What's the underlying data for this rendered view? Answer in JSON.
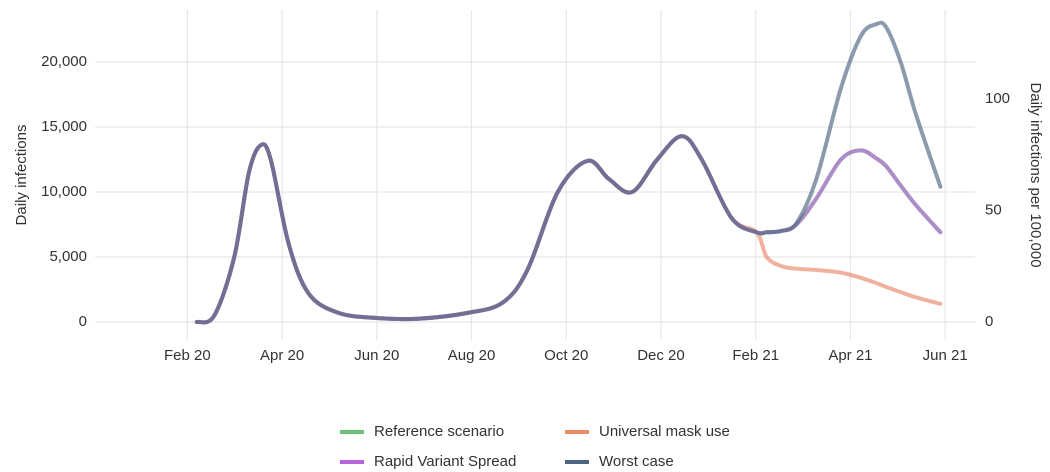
{
  "chart_data": {
    "type": "line",
    "ylabel": "Daily infections",
    "y2label": "Daily infections per 100,000",
    "x": [
      1.2,
      1.57,
      1.99,
      2.3,
      2.55,
      2.76,
      3.14,
      3.56,
      4.19,
      5.03,
      5.87,
      6.92,
      7.66,
      8.18,
      8.82,
      9.45,
      9.9,
      10.39,
      10.92,
      11.44,
      11.86,
      12.49,
      13.02,
      13.23,
      13.54,
      13.86,
      14.28,
      14.8,
      15.22,
      15.54,
      15.75,
      16.06,
      16.38,
      16.9
    ],
    "xlim": [
      -0.95,
      17.63
    ],
    "xticks": [
      {
        "value": 1,
        "label": "Feb 20"
      },
      {
        "value": 3,
        "label": "Apr 20"
      },
      {
        "value": 5,
        "label": "Jun 20"
      },
      {
        "value": 7,
        "label": "Aug 20"
      },
      {
        "value": 9,
        "label": "Oct 20"
      },
      {
        "value": 11,
        "label": "Dec 20"
      },
      {
        "value": 13,
        "label": "Feb 21"
      },
      {
        "value": 15,
        "label": "Apr 21"
      },
      {
        "value": 17,
        "label": "Jun 21"
      }
    ],
    "ylim": [
      -1385,
      24000
    ],
    "yticks": [
      0,
      {
        "value": 5000,
        "label": "5,000"
      },
      {
        "value": 10000,
        "label": "10,000"
      },
      {
        "value": 15000,
        "label": "15,000"
      },
      {
        "value": 20000,
        "label": "20,000"
      }
    ],
    "y2lim": [
      -8.07,
      139.9
    ],
    "y2ticks": [
      0,
      50,
      100
    ],
    "grid": true,
    "legend": "bottom",
    "series": [
      {
        "name": "Reference scenario",
        "color": "#6cc07a",
        "values": [
          0,
          500,
          5000,
          11500,
          13600,
          12500,
          6000,
          2200,
          700,
          300,
          250,
          700,
          1500,
          4000,
          10000,
          12400,
          11000,
          10000,
          12500,
          14300,
          12500,
          8000,
          6900,
          6900,
          7000,
          7500,
          9500,
          12500,
          13200,
          12600,
          12000,
          10500,
          9000,
          6900
        ]
      },
      {
        "name": "Universal mask use",
        "color": "#e8896a",
        "values": [
          0,
          500,
          5000,
          11500,
          13600,
          12500,
          6000,
          2200,
          700,
          300,
          250,
          700,
          1500,
          4000,
          10000,
          12400,
          11000,
          10000,
          12500,
          14300,
          12500,
          8000,
          6900,
          5000,
          4300,
          4100,
          4000,
          3800,
          3400,
          3000,
          2700,
          2300,
          1900,
          1400
        ]
      },
      {
        "name": "Rapid Variant Spread",
        "color": "#b566d8",
        "values": [
          0,
          500,
          5000,
          11500,
          13600,
          12500,
          6000,
          2200,
          700,
          300,
          250,
          700,
          1500,
          4000,
          10000,
          12400,
          11000,
          10000,
          12500,
          14300,
          12500,
          8000,
          6900,
          6900,
          7000,
          7500,
          9500,
          12500,
          13200,
          12600,
          12000,
          10500,
          9000,
          6900
        ]
      },
      {
        "name": "Worst case",
        "color": "#4d6580",
        "values": [
          0,
          500,
          5000,
          11500,
          13600,
          12500,
          6000,
          2200,
          700,
          300,
          250,
          700,
          1500,
          4000,
          10000,
          12400,
          11000,
          10000,
          12500,
          14300,
          12500,
          8000,
          6900,
          6900,
          7000,
          7600,
          11000,
          18000,
          22000,
          22900,
          22700,
          20000,
          16000,
          10400
        ]
      }
    ]
  }
}
